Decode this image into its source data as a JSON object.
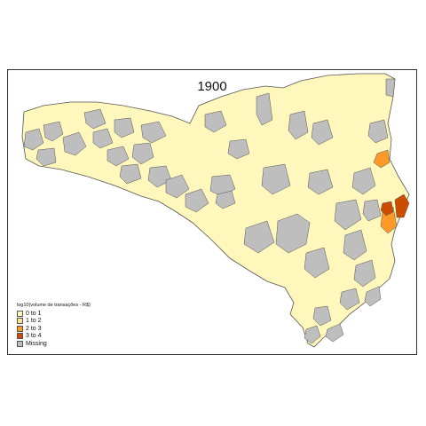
{
  "map": {
    "title": "1900",
    "legend": {
      "title": "log10(volume de transações - R$)",
      "items": [
        {
          "label": "0 to 1",
          "color": "#FFF7BC"
        },
        {
          "label": "1 to 2",
          "color": "#FEE391"
        },
        {
          "label": "2 to 3",
          "color": "#FB9A29"
        },
        {
          "label": "3 to 4",
          "color": "#CC4C02"
        },
        {
          "label": "Missing",
          "color": "#BEBEBE"
        }
      ]
    },
    "colors": {
      "state_fill": "#FFF7BC",
      "missing": "#BEBEBE",
      "border": "#555555"
    }
  }
}
